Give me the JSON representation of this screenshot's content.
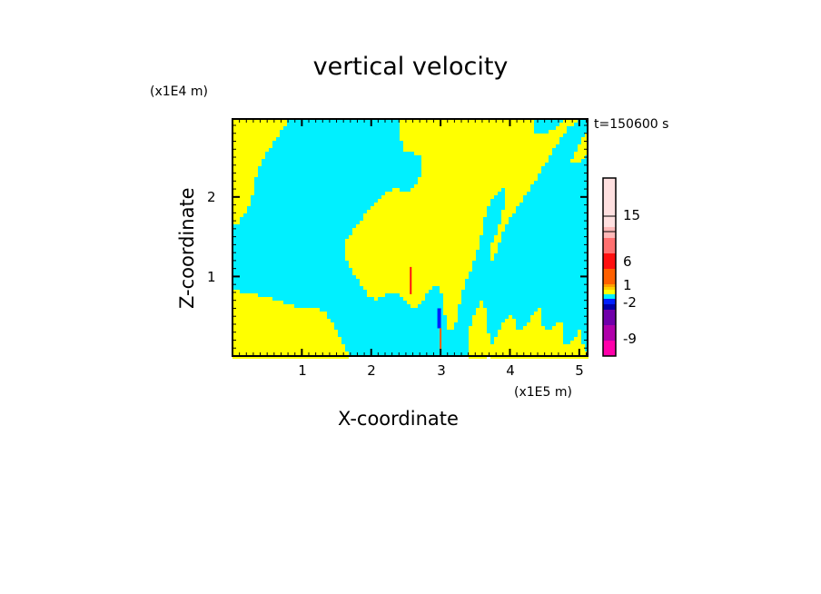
{
  "chart_data": {
    "type": "heatmap",
    "title": "vertical velocity",
    "xlabel": "X-coordinate",
    "ylabel": "Z-coordinate",
    "x_unit": "(x1E5 m)",
    "y_unit": "(x1E4 m)",
    "time_label": "t=150600 s",
    "xlim": [
      0,
      5.12
    ],
    "ylim": [
      0,
      2.98
    ],
    "x_ticks": [
      "1",
      "2",
      "3",
      "4",
      "5"
    ],
    "y_ticks": [
      "1",
      "2"
    ],
    "x_tick_values": [
      1,
      2,
      3,
      4,
      5
    ],
    "y_tick_values": [
      1,
      2
    ],
    "colorbar": {
      "colors": [
        "#ff00aa",
        "#b000aa",
        "#7000aa",
        "#0000aa",
        "#0020ff",
        "#00f0ff",
        "#ffff00",
        "#ffd000",
        "#ffa000",
        "#ff6000",
        "#ff1010",
        "#ff7070",
        "#ffb8b8",
        "#ffe0e0"
      ],
      "tick_labels": [
        "-9",
        "-2",
        "1",
        "6",
        "15"
      ]
    },
    "dominant_colors": {
      "positive": "#ffff00",
      "negative": "#00f0ff"
    }
  }
}
